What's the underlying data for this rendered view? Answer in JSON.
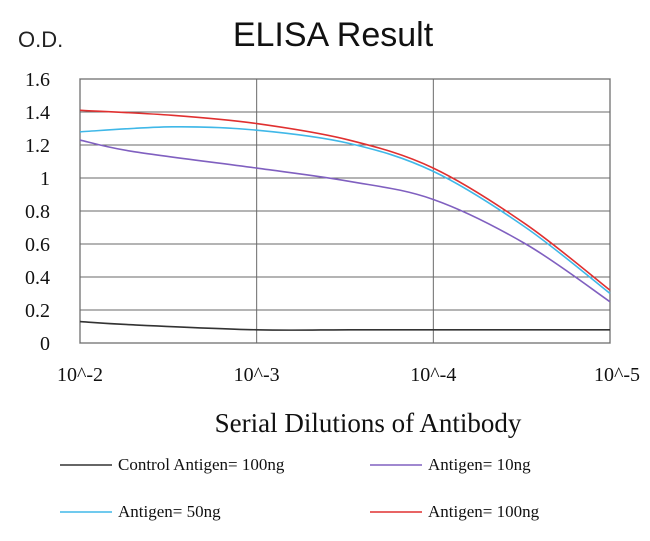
{
  "chart_data": {
    "type": "line",
    "title": "ELISA Result",
    "ylabel": "O.D.",
    "xlabel": "Serial Dilutions  of Antibody",
    "x_tick_labels": [
      "10^-2",
      "10^-3",
      "10^-4",
      "10^-5"
    ],
    "y_tick_labels": [
      "1.6",
      "1.4",
      "1.2",
      "1",
      "0.8",
      "0.6",
      "0.4",
      "0.2",
      "0"
    ],
    "x_scale": "log",
    "x_log10_range": [
      -2,
      -5
    ],
    "ylim": [
      0,
      1.6
    ],
    "grid": true,
    "legend_position": "bottom",
    "series": [
      {
        "name": "Control Antigen= 100ng",
        "color": "#333333",
        "x": [
          0.01,
          0.005,
          0.001,
          0.0003,
          0.0001,
          3e-05,
          1e-05
        ],
        "y": [
          0.13,
          0.11,
          0.08,
          0.08,
          0.08,
          0.08,
          0.08
        ]
      },
      {
        "name": "Antigen= 10ng",
        "color": "#8060c0",
        "x": [
          0.01,
          0.005,
          0.001,
          0.0003,
          0.0001,
          3e-05,
          1e-05
        ],
        "y": [
          1.23,
          1.16,
          1.06,
          0.98,
          0.87,
          0.6,
          0.25
        ]
      },
      {
        "name": "Antigen= 50ng",
        "color": "#40b8e8",
        "x": [
          0.01,
          0.003,
          0.001,
          0.0003,
          0.0001,
          3e-05,
          1e-05
        ],
        "y": [
          1.28,
          1.31,
          1.29,
          1.21,
          1.04,
          0.7,
          0.3
        ]
      },
      {
        "name": "Antigen= 100ng",
        "color": "#e03030",
        "x": [
          0.01,
          0.003,
          0.001,
          0.0003,
          0.0001,
          3e-05,
          1e-05
        ],
        "y": [
          1.41,
          1.38,
          1.33,
          1.23,
          1.06,
          0.72,
          0.32
        ]
      }
    ]
  }
}
